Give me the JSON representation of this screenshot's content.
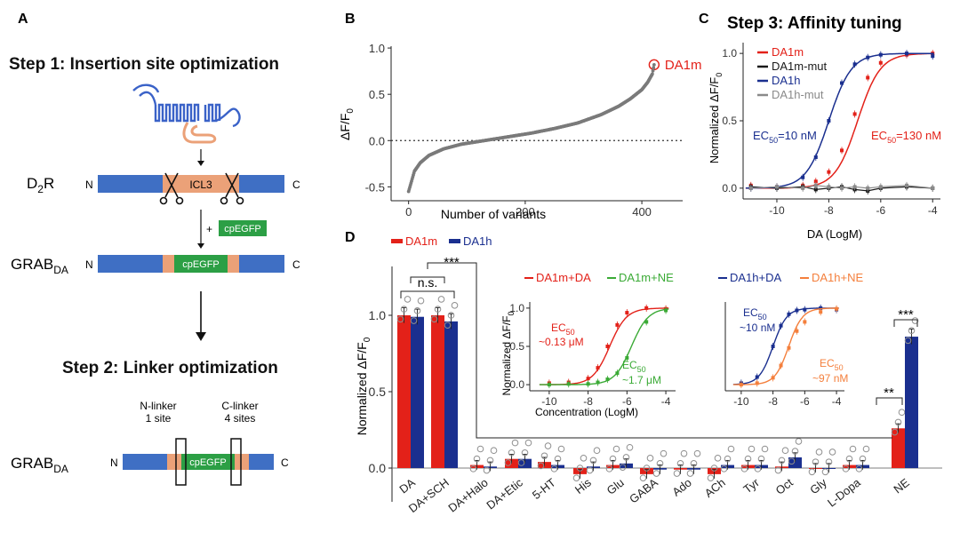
{
  "colors": {
    "red": "#e32119",
    "blue": "#1a2f8f",
    "black": "#1a1a1a",
    "gray": "#8a8a8a",
    "green": "#3aaa35",
    "orange": "#f47f3c",
    "salmon": "#eba178",
    "gfp": "#2c9f45",
    "bar": "#4a73c0"
  },
  "panels": {
    "A": "A",
    "B": "B",
    "C": "C",
    "D": "D"
  },
  "panel_a": {
    "step1": "Step 1: Insertion site optimization",
    "step2": "Step 2: Linker optimization",
    "d2r_main": "D",
    "d2r_sub": "2",
    "d2r_end": "R",
    "grab_main": "GRAB",
    "grab_sub": "DA",
    "n": "N",
    "c": "C",
    "icl3": "ICL3",
    "plus": "+",
    "cpegfp": "cpEGFP",
    "nlinker_1": "N-linker",
    "nlinker_2": "1 site",
    "clinker_1": "C-linker",
    "clinker_2": "4 sites"
  },
  "chart_data": [
    {
      "id": "B",
      "type": "scatter",
      "title": "",
      "xlabel": "Number of variants",
      "ylabel_main": "ΔF/F",
      "ylabel_sub": "0",
      "xlim": [
        -30,
        470
      ],
      "ylim": [
        -0.65,
        1.02
      ],
      "xticks": [
        "0",
        "200",
        "400"
      ],
      "xtick_values": [
        0,
        200,
        400
      ],
      "yticks": [
        "-0.5",
        "0.0",
        "0.5",
        "1.0"
      ],
      "ytick_values": [
        -0.5,
        0,
        0.5,
        1.0
      ],
      "n_points": 421,
      "curve_x": [
        0,
        5,
        10,
        20,
        35,
        60,
        90,
        130,
        170,
        210,
        250,
        290,
        330,
        360,
        380,
        400,
        410,
        418,
        421
      ],
      "curve_y": [
        -0.55,
        -0.44,
        -0.33,
        -0.24,
        -0.16,
        -0.09,
        -0.04,
        0.0,
        0.04,
        0.08,
        0.13,
        0.19,
        0.28,
        0.37,
        0.45,
        0.55,
        0.63,
        0.72,
        0.82
      ],
      "highlight": {
        "label": "DA1m",
        "x": 421,
        "y": 0.82
      },
      "reference_line": 0
    },
    {
      "id": "C",
      "type": "line",
      "title": "Step 3: Affinity tuning",
      "xlabel": "DA (LogM)",
      "ylabel": "Normalized ΔF/F",
      "ylabel_sub": "0",
      "xlim": [
        -11.3,
        -3.7
      ],
      "ylim": [
        -0.08,
        1.08
      ],
      "xticks": [
        "-10",
        "-8",
        "-6",
        "-4"
      ],
      "xtick_values": [
        -10,
        -8,
        -6,
        -4
      ],
      "yticks": [
        "0.0",
        "0.5",
        "1.0"
      ],
      "ytick_values": [
        0,
        0.5,
        1.0
      ],
      "x": [
        -11,
        -10,
        -9,
        -8.5,
        -8,
        -7.5,
        -7,
        -6.5,
        -6,
        -5,
        -4
      ],
      "series": [
        {
          "name": "DA1m",
          "color": "red",
          "ec50_log": -6.89,
          "hill": 1,
          "fit": true,
          "values": [
            0.02,
            0.01,
            0.02,
            0.05,
            0.12,
            0.28,
            0.55,
            0.82,
            0.93,
            0.99,
            1.0
          ]
        },
        {
          "name": "DA1m-mut",
          "color": "black",
          "fit": false,
          "values": [
            0.01,
            0.0,
            0.01,
            -0.01,
            0.0,
            0.01,
            -0.01,
            -0.02,
            0.0,
            0.01,
            0.0
          ]
        },
        {
          "name": "DA1h",
          "color": "blue",
          "ec50_log": -8.0,
          "hill": 1,
          "fit": true,
          "values": [
            0.0,
            0.01,
            0.08,
            0.23,
            0.5,
            0.78,
            0.92,
            0.97,
            0.99,
            1.0,
            0.98
          ]
        },
        {
          "name": "DA1h-mut",
          "color": "gray",
          "fit": false,
          "values": [
            0.0,
            0.01,
            0.0,
            0.02,
            0.01,
            0.0,
            0.01,
            0.0,
            0.01,
            0.02,
            0.0
          ]
        }
      ],
      "annotations": [
        {
          "pre": "EC",
          "sub": "50",
          "post": "=10 nM",
          "color": "blue"
        },
        {
          "pre": "EC",
          "sub": "50",
          "post": "=130 nM",
          "color": "red"
        }
      ]
    },
    {
      "id": "D",
      "type": "bar",
      "ylabel_main": "Normalized ΔF/F",
      "ylabel_sub": "0",
      "ylim": [
        -0.12,
        1.2
      ],
      "yticks": [
        "0.0",
        "0.5",
        "1.0"
      ],
      "ytick_values": [
        0,
        0.5,
        1.0
      ],
      "legend": [
        "DA1m",
        "DA1h"
      ],
      "categories": [
        "DA",
        "DA+SCH",
        "DA+Halo",
        "DA+Etic",
        "5-HT",
        "His",
        "Glu",
        "GABA",
        "Ado",
        "ACh",
        "Tyr",
        "Oct",
        "Gly",
        "L-Dopa",
        "NE"
      ],
      "series": [
        {
          "name": "DA1m",
          "color": "red",
          "values": [
            1.0,
            1.0,
            0.02,
            0.06,
            0.04,
            -0.04,
            0.02,
            -0.04,
            -0.01,
            -0.04,
            0.02,
            0.01,
            0.0,
            0.02,
            0.26
          ]
        },
        {
          "name": "DA1h",
          "color": "blue",
          "values": [
            0.99,
            0.96,
            0.01,
            0.06,
            0.02,
            0.01,
            0.03,
            -0.01,
            -0.01,
            0.02,
            0.02,
            0.07,
            0.0,
            0.02,
            0.86
          ]
        }
      ],
      "significance": [
        {
          "label": "n.s.",
          "between": "DA1m vs DA1h"
        },
        {
          "label": "***",
          "between": "DA vs rest"
        },
        {
          "label": "**",
          "between": "NE DA1m"
        },
        {
          "label": "***",
          "between": "NE DA1h"
        }
      ]
    },
    {
      "id": "D_inset1",
      "type": "line",
      "xlabel": "Concentration (LogM)",
      "ylabel_main": "Normalized ΔF/F",
      "ylabel_sub": "0",
      "xlim": [
        -11,
        -3.5
      ],
      "ylim": [
        -0.08,
        1.08
      ],
      "xticks": [
        "-10",
        "-8",
        "-6",
        "-4"
      ],
      "xtick_values": [
        -10,
        -8,
        -6,
        -4
      ],
      "yticks": [
        "0.0",
        "0.5",
        "1.0"
      ],
      "ytick_values": [
        0,
        0.5,
        1.0
      ],
      "x": [
        -10,
        -9,
        -8,
        -7.5,
        -7,
        -6.5,
        -6,
        -5,
        -4
      ],
      "series": [
        {
          "name": "DA1m+DA",
          "color": "red",
          "ec50_log": -6.89,
          "values": [
            0.02,
            0.03,
            0.08,
            0.22,
            0.5,
            0.78,
            0.94,
            1.0,
            0.99
          ]
        },
        {
          "name": "DA1m+NE",
          "color": "green",
          "ec50_log": -5.77,
          "values": [
            0.0,
            0.01,
            0.01,
            0.03,
            0.07,
            0.15,
            0.35,
            0.82,
            0.97
          ]
        }
      ],
      "annotations": [
        {
          "pre": "EC",
          "sub": "50",
          "line2": "~0.13 μM",
          "color": "red"
        },
        {
          "pre": "EC",
          "sub": "50",
          "line2": "~1.7 μM",
          "color": "green"
        }
      ]
    },
    {
      "id": "D_inset2",
      "type": "line",
      "xlim": [
        -11,
        -3.5
      ],
      "ylim": [
        -0.08,
        1.08
      ],
      "xticks": [
        "-10",
        "-8",
        "-6",
        "-4"
      ],
      "xtick_values": [
        -10,
        -8,
        -6,
        -4
      ],
      "x": [
        -10,
        -9,
        -8,
        -7.5,
        -7,
        -6.5,
        -6,
        -5,
        -4
      ],
      "series": [
        {
          "name": "DA1h+DA",
          "color": "blue",
          "ec50_log": -8.0,
          "values": [
            0.02,
            0.1,
            0.5,
            0.77,
            0.92,
            0.97,
            0.98,
            1.0,
            0.98
          ]
        },
        {
          "name": "DA1h+NE",
          "color": "orange",
          "ec50_log": -7.01,
          "values": [
            0.0,
            0.02,
            0.09,
            0.25,
            0.48,
            0.7,
            0.82,
            0.95,
            0.99
          ]
        }
      ],
      "annotations": [
        {
          "pre": "EC",
          "sub": "50",
          "line2": "~10 nM",
          "color": "blue"
        },
        {
          "pre": "EC",
          "sub": "50",
          "line2": "~97 nM",
          "color": "orange"
        }
      ]
    }
  ]
}
